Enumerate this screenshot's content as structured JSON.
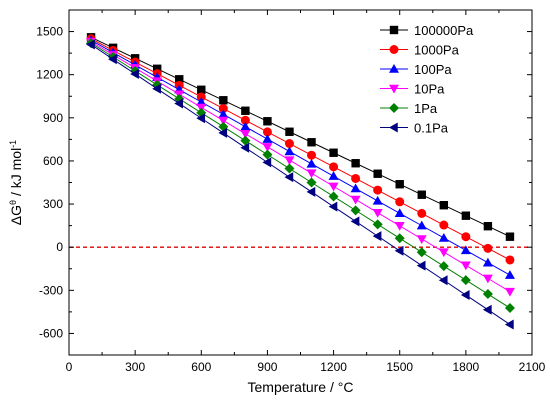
{
  "chart_data": {
    "type": "line",
    "xlabel_main": "Temperature / ",
    "xlabel_unit": "°C",
    "ylabel_main": "ΔG",
    "ylabel_sup": "θ",
    "ylabel_rest": " / kJ mol",
    "ylabel_sup2": "-1",
    "xlim": [
      0,
      2100
    ],
    "ylim": [
      -750,
      1650
    ],
    "xticks": [
      0,
      300,
      600,
      900,
      1200,
      1500,
      1800,
      2100
    ],
    "yticks": [
      -600,
      -300,
      0,
      300,
      600,
      900,
      1200,
      1500
    ],
    "xtick_labels": [
      "0",
      "300",
      "600",
      "900",
      "1200",
      "1500",
      "1800",
      "2100"
    ],
    "ytick_labels": [
      "-600",
      "-300",
      "0",
      "300",
      "600",
      "900",
      "1200",
      "1500"
    ],
    "reference_line": {
      "y": 0,
      "color": "#e00000",
      "style": "dashed"
    },
    "legend_position": "top-right",
    "x": [
      100,
      200,
      300,
      400,
      500,
      600,
      700,
      800,
      900,
      1000,
      1100,
      1200,
      1300,
      1400,
      1500,
      1600,
      1700,
      1800,
      1900,
      2000
    ],
    "series": [
      {
        "name": "100000Pa",
        "color": "#000000",
        "marker": "square",
        "values": [
          1460,
          1387,
          1314,
          1241,
          1168,
          1095,
          1022,
          949,
          876,
          803,
          730,
          657,
          584,
          511,
          438,
          365,
          292,
          219,
          146,
          73
        ]
      },
      {
        "name": "1000Pa",
        "color": "#ff0000",
        "marker": "circle",
        "values": [
          1450,
          1369,
          1288,
          1207,
          1126,
          1045,
          964,
          883,
          802,
          721,
          640,
          559,
          478,
          397,
          316,
          235,
          154,
          73,
          -8,
          -89
        ]
      },
      {
        "name": "100Pa",
        "color": "#0000ff",
        "marker": "triangle-up",
        "values": [
          1440,
          1354,
          1268,
          1182,
          1096,
          1010,
          924,
          838,
          752,
          666,
          580,
          494,
          408,
          322,
          236,
          150,
          64,
          -22,
          -108,
          -194
        ]
      },
      {
        "name": "10Pa",
        "color": "#ff00ff",
        "marker": "triangle-down",
        "values": [
          1430,
          1338,
          1247,
          1155,
          1064,
          972,
          881,
          789,
          698,
          606,
          515,
          423,
          332,
          240,
          149,
          57,
          -34,
          -126,
          -217,
          -309
        ]
      },
      {
        "name": "1Pa",
        "color": "#008000",
        "marker": "diamond",
        "values": [
          1420,
          1323,
          1226,
          1129,
          1032,
          935,
          838,
          741,
          644,
          547,
          450,
          353,
          256,
          159,
          62,
          -35,
          -132,
          -229,
          -326,
          -423
        ]
      },
      {
        "name": "0.1Pa",
        "color": "#000080",
        "marker": "triangle-left",
        "values": [
          1410,
          1307,
          1205,
          1102,
          1000,
          897,
          795,
          692,
          590,
          487,
          385,
          282,
          180,
          77,
          -25,
          -128,
          -230,
          -333,
          -435,
          -538
        ]
      }
    ]
  }
}
